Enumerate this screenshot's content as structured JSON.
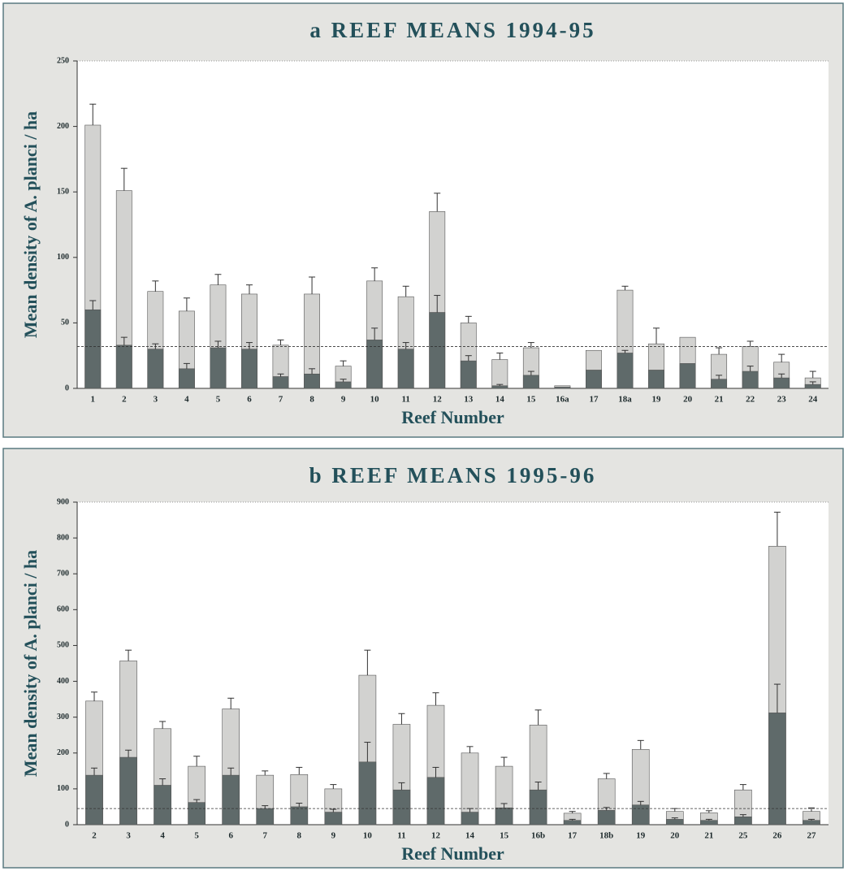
{
  "chart_data": [
    {
      "type": "bar",
      "title": "a REEF MEANS 1994-95",
      "x_label": "Reef Number",
      "y_label": "Mean density of A. planci / ha",
      "categories": [
        "1",
        "2",
        "3",
        "4",
        "5",
        "6",
        "7",
        "8",
        "9",
        "10",
        "11",
        "12",
        "13",
        "14",
        "15",
        "16a",
        "17",
        "18a",
        "19",
        "20",
        "21",
        "22",
        "23",
        "24"
      ],
      "series": [
        {
          "color": "#d2d2d0",
          "values": [
            201,
            151,
            74,
            59,
            79,
            72,
            33,
            72,
            17,
            82,
            70,
            135,
            50,
            22,
            31,
            2,
            29,
            75,
            34,
            39,
            26,
            32,
            20,
            8
          ],
          "errors": [
            16,
            17,
            8,
            10,
            8,
            7,
            4,
            13,
            4,
            10,
            8,
            14,
            5,
            5,
            4,
            null,
            null,
            3,
            12,
            null,
            5,
            4,
            6,
            5
          ]
        },
        {
          "color": "#5f6a6a",
          "values": [
            60,
            33,
            30,
            15,
            31,
            30,
            9,
            11,
            5,
            37,
            30,
            58,
            21,
            2,
            10,
            1,
            14,
            27,
            14,
            19,
            7,
            13,
            8,
            3
          ],
          "errors": [
            7,
            6,
            4,
            4,
            5,
            5,
            2,
            4,
            2,
            9,
            5,
            13,
            4,
            1,
            3,
            null,
            null,
            2,
            null,
            null,
            3,
            4,
            3,
            2
          ]
        }
      ],
      "reference_line": 32,
      "ylim": [
        0,
        250
      ],
      "yticks": [
        0,
        50,
        100,
        150,
        200,
        250
      ]
    },
    {
      "type": "bar",
      "title": "b REEF MEANS 1995-96",
      "x_label": "Reef Number",
      "y_label": "Mean density of A. planci / ha",
      "categories": [
        "2",
        "3",
        "4",
        "5",
        "6",
        "7",
        "8",
        "9",
        "10",
        "11",
        "12",
        "14",
        "15",
        "16b",
        "17",
        "18b",
        "19",
        "20",
        "21",
        "25",
        "26",
        "27"
      ],
      "series": [
        {
          "color": "#d2d2d0",
          "values": [
            345,
            457,
            268,
            163,
            323,
            138,
            140,
            100,
            417,
            280,
            333,
            200,
            163,
            278,
            32,
            128,
            210,
            37,
            33,
            97,
            777,
            37
          ],
          "errors": [
            25,
            30,
            20,
            28,
            30,
            12,
            20,
            12,
            70,
            30,
            35,
            18,
            25,
            42,
            5,
            15,
            25,
            8,
            6,
            15,
            95,
            10
          ]
        },
        {
          "color": "#5f6a6a",
          "values": [
            138,
            188,
            110,
            62,
            138,
            45,
            50,
            35,
            175,
            97,
            132,
            35,
            47,
            97,
            12,
            40,
            55,
            15,
            12,
            22,
            312,
            12
          ],
          "errors": [
            20,
            20,
            18,
            8,
            20,
            8,
            10,
            8,
            55,
            20,
            28,
            10,
            12,
            22,
            3,
            8,
            10,
            4,
            3,
            6,
            80,
            3
          ]
        }
      ],
      "reference_line": 45,
      "ylim": [
        0,
        900
      ],
      "yticks": [
        0,
        100,
        200,
        300,
        400,
        500,
        600,
        700,
        800,
        900
      ]
    }
  ]
}
